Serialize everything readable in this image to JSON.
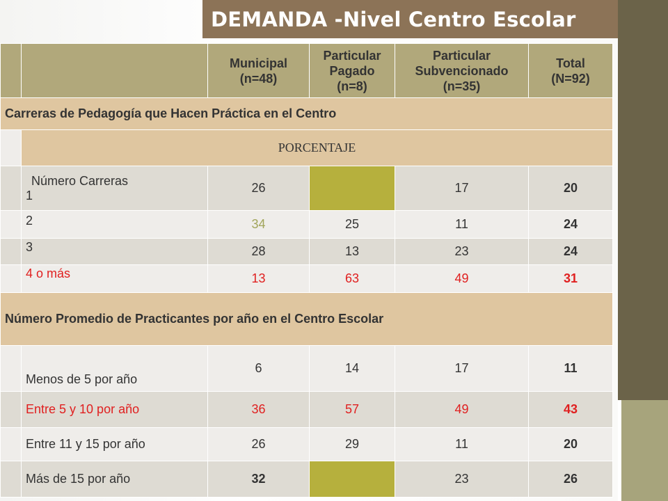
{
  "title": "DEMANDA -Nivel Centro Escolar",
  "colors": {
    "header": "#b1a87b",
    "section": "#dfc6a0",
    "highlight": "#b6b03d",
    "title_bar": "#8c7357",
    "sidebar": "#6b6349",
    "red_text": "#e02020"
  },
  "headers": {
    "municipal": [
      "Municipal",
      "(n=48)"
    ],
    "particular_pagado": [
      "Particular",
      "Pagado",
      "(n=8)"
    ],
    "particular_subv": [
      "Particular",
      "Subvencionado",
      "(n=35)"
    ],
    "total": [
      "Total",
      "(N=92)"
    ]
  },
  "section1": {
    "title": "Carreras de Pedagogía que  Hacen Práctica en el Centro",
    "subheader": "PORCENTAJE",
    "rows": [
      {
        "label": "Número Carreras",
        "label2": "1",
        "municipal": "26",
        "pagado": "",
        "subv": "17",
        "total": "20"
      },
      {
        "label": "2",
        "municipal": "34",
        "pagado": "25",
        "subv": "11",
        "total": "24"
      },
      {
        "label": "3",
        "municipal": "28",
        "pagado": "13",
        "subv": "23",
        "total": "24"
      },
      {
        "label": "4 o más",
        "municipal": "13",
        "pagado": "63",
        "subv": "49",
        "total": "31"
      }
    ]
  },
  "section2": {
    "title": "Número Promedio de Practicantes por año en el Centro Escolar",
    "rows": [
      {
        "label": "Menos de 5 por año",
        "municipal": "6",
        "pagado": "14",
        "subv": "17",
        "total": "11"
      },
      {
        "label": "Entre 5 y 10 por año",
        "municipal": "36",
        "pagado": "57",
        "subv": "49",
        "total": "43"
      },
      {
        "label": "Entre 11 y 15 por año",
        "municipal": "26",
        "pagado": "29",
        "subv": "11",
        "total": "20"
      },
      {
        "label": "Más de 15 por año",
        "municipal": "32",
        "pagado": "",
        "subv": "23",
        "total": "26"
      }
    ]
  }
}
